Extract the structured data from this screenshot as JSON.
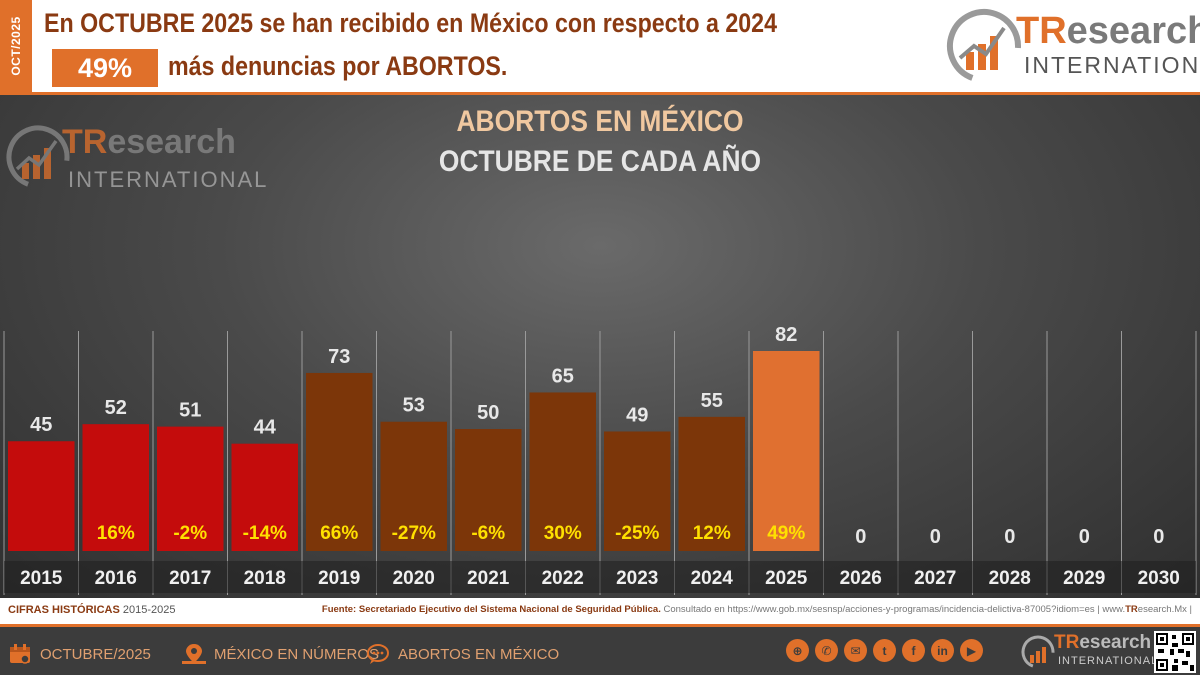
{
  "header": {
    "side_tag": "OCT/2025",
    "headline_1": "En OCTUBRE 2025 se han recibido en México con respecto a 2024",
    "badge": "49%",
    "headline_2": "más denuncias por ABORTOS."
  },
  "brand": {
    "name_tr": "TR",
    "name_rest": "esearch",
    "international": "INTERNATIONAL"
  },
  "colors": {
    "accent": "#e0702a",
    "red_bar": "#c40c0c",
    "brown_bar": "#7c3609",
    "highlight_bar": "#e07030",
    "pct_text": "#ffe000"
  },
  "chart_data": {
    "type": "bar",
    "title": "ABORTOS EN MÉXICO",
    "subtitle": "OCTUBRE DE CADA AÑO",
    "categories": [
      "2015",
      "2016",
      "2017",
      "2018",
      "2019",
      "2020",
      "2021",
      "2022",
      "2023",
      "2024",
      "2025",
      "2026",
      "2027",
      "2028",
      "2029",
      "2030"
    ],
    "values": [
      45,
      52,
      51,
      44,
      73,
      53,
      50,
      65,
      49,
      55,
      82,
      0,
      0,
      0,
      0,
      0
    ],
    "value_labels": [
      "45",
      "52",
      "51",
      "44",
      "73",
      "53",
      "50",
      "65",
      "49",
      "55",
      "82",
      "0",
      "0",
      "0",
      "0",
      "0"
    ],
    "pct_change": [
      "",
      "16%",
      "-2%",
      "-14%",
      "66%",
      "-27%",
      "-6%",
      "30%",
      "-25%",
      "12%",
      "49%",
      "",
      "",
      "",
      "",
      ""
    ],
    "bar_colors": [
      "red",
      "red",
      "red",
      "red",
      "brown",
      "brown",
      "brown",
      "brown",
      "brown",
      "brown",
      "highlight",
      "none",
      "none",
      "none",
      "none",
      "none"
    ],
    "ylim": [
      0,
      82
    ],
    "grid": false,
    "legend": "none"
  },
  "source": {
    "left_bold": "CIFRAS HISTÓRICAS",
    "left_rest": "2015-2025",
    "right_bold": "Fuente: Secretariado Ejecutivo del Sistema Nacional de Seguridad Pública.",
    "right_rest": "Consultado en https://www.gob.mx/sesnsp/acciones-y-programas/incidencia-delictiva-87005?idiom=es |",
    "right_site_prefix": "www.",
    "right_site_tr": "TR",
    "right_site_rest": "esearch.Mx |"
  },
  "footer": {
    "item_1": "OCTUBRE/2025",
    "item_2": "MÉXICO EN NÚMEROS",
    "item_3": "ABORTOS EN MÉXICO",
    "social_icons": [
      "globe-icon",
      "phone-icon",
      "mail-icon",
      "twitter-icon",
      "facebook-icon",
      "linkedin-icon",
      "youtube-icon"
    ],
    "social_glyphs": [
      "⊕",
      "✆",
      "✉",
      "t",
      "f",
      "in",
      "▶"
    ]
  }
}
